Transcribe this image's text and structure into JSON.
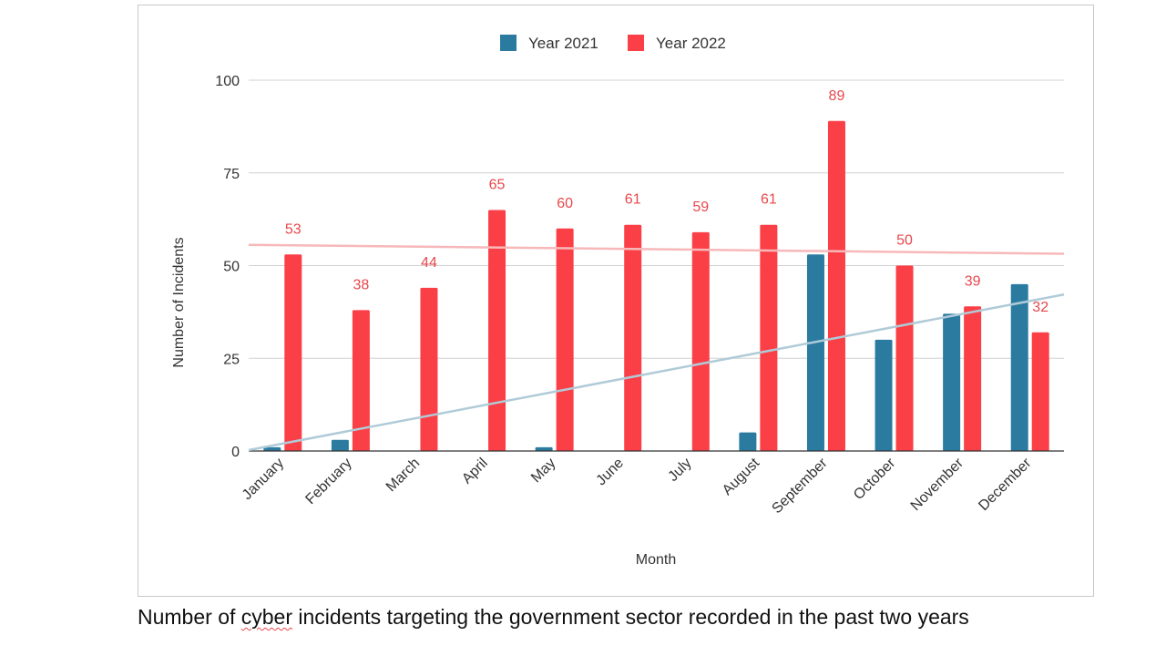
{
  "chart_data": {
    "type": "bar",
    "categories": [
      "January",
      "February",
      "March",
      "April",
      "May",
      "June",
      "July",
      "August",
      "September",
      "October",
      "November",
      "December"
    ],
    "series": [
      {
        "name": "Year 2021",
        "color": "#2b7ba1",
        "values": [
          1,
          3,
          0,
          0,
          1,
          0,
          0,
          5,
          53,
          30,
          37,
          45
        ]
      },
      {
        "name": "Year 2022",
        "color": "#fa3f46",
        "values": [
          53,
          38,
          44,
          65,
          60,
          61,
          59,
          61,
          89,
          50,
          39,
          32
        ],
        "data_labels": true
      }
    ],
    "trendlines": [
      {
        "series": "Year 2021",
        "color": "#b0cbd8",
        "start": 0.25,
        "end": 42.2,
        "clip_min": 0
      },
      {
        "series": "Year 2022",
        "color": "#f7b8ba",
        "start": 55.6,
        "end": 53.2
      }
    ],
    "xlabel": "Month",
    "ylabel": "Number of Incidents",
    "ylim": [
      0,
      100
    ],
    "yticks": [
      0,
      25,
      50,
      75,
      100
    ],
    "grid": true,
    "legend": "top-center"
  },
  "caption": {
    "before": "Number of ",
    "marked_word": "cyber",
    "after": " incidents targeting the government sector recorded in the past two years"
  }
}
